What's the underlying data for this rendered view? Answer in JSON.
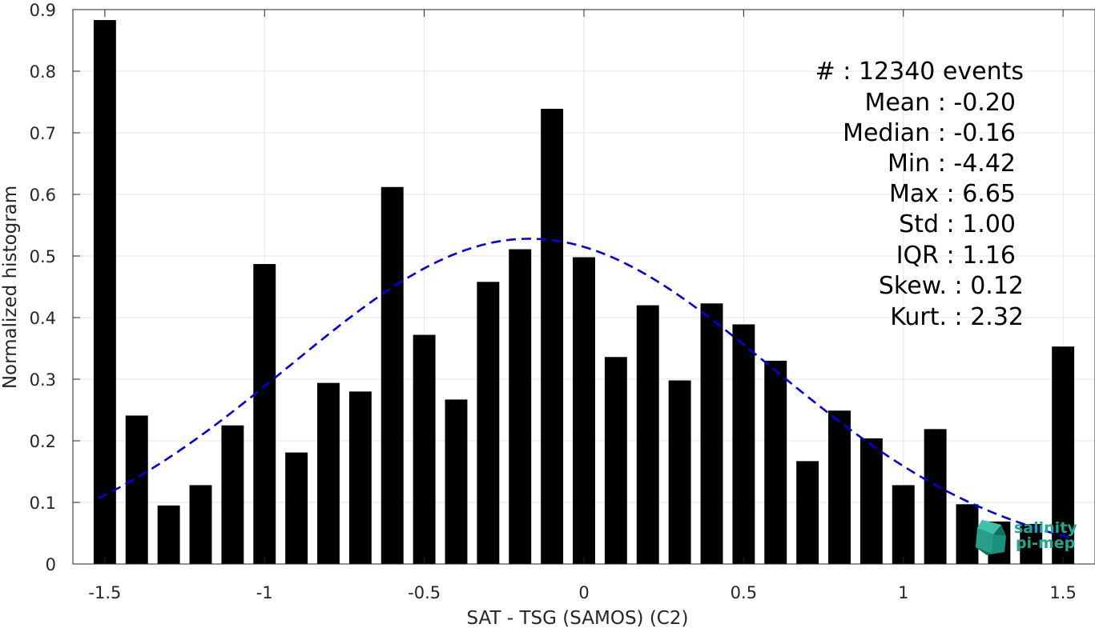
{
  "chart_data": {
    "type": "bar",
    "xlabel": "SAT - TSG (SAMOS) (C2)",
    "ylabel": "Normalized histogram",
    "xlim": [
      -1.6,
      1.6
    ],
    "ylim": [
      0,
      0.9
    ],
    "x_ticks": [
      "-1.5",
      "-1",
      "-0.5",
      "0",
      "0.5",
      "1",
      "1.5"
    ],
    "x_tick_values": [
      -1.5,
      -1,
      -0.5,
      0,
      0.5,
      1,
      1.5
    ],
    "y_ticks": [
      "0",
      "0.1",
      "0.2",
      "0.3",
      "0.4",
      "0.5",
      "0.6",
      "0.7",
      "0.8",
      "0.9"
    ],
    "y_tick_values": [
      0,
      0.1,
      0.2,
      0.3,
      0.4,
      0.5,
      0.6,
      0.7,
      0.8,
      0.9
    ],
    "grid": true,
    "bars": {
      "color": "#000000",
      "x": [
        -1.5,
        -1.4,
        -1.3,
        -1.2,
        -1.1,
        -1.0,
        -0.9,
        -0.8,
        -0.7,
        -0.6,
        -0.5,
        -0.4,
        -0.3,
        -0.2,
        -0.1,
        0.0,
        0.1,
        0.2,
        0.3,
        0.4,
        0.5,
        0.6,
        0.7,
        0.8,
        0.9,
        1.0,
        1.1,
        1.2,
        1.3,
        1.4,
        1.5
      ],
      "values": [
        0.883,
        0.241,
        0.095,
        0.128,
        0.225,
        0.487,
        0.181,
        0.294,
        0.28,
        0.612,
        0.372,
        0.267,
        0.458,
        0.511,
        0.739,
        0.498,
        0.336,
        0.42,
        0.298,
        0.423,
        0.389,
        0.33,
        0.167,
        0.249,
        0.204,
        0.128,
        0.219,
        0.097,
        0.069,
        0.065,
        0.353
      ]
    },
    "gaussian_fit": {
      "color": "#0000e6",
      "style": "dashed",
      "mean": -0.17,
      "std": 0.755,
      "peak": 0.528,
      "x_range": [
        -1.52,
        1.52
      ]
    },
    "stats": [
      "#  : 12340 events",
      "Mean : -0.20",
      "Median : -0.16",
      "Min : -4.42",
      "Max : 6.65",
      "Std : 1.00",
      "IQR : 1.16",
      "Skew. : 0.12",
      "Kurt. : 2.32"
    ],
    "logo": {
      "line1": "salinity",
      "line2": "pi-mep",
      "color": "#1fa88f"
    }
  }
}
